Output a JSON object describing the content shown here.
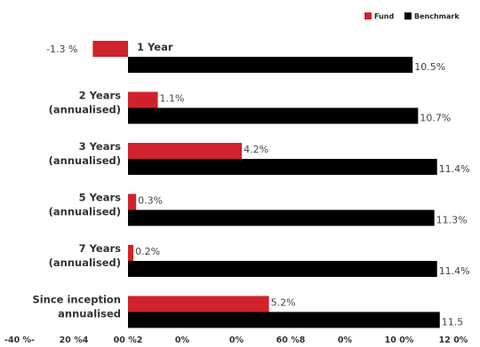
{
  "chart_data": {
    "type": "bar",
    "orientation": "horizontal",
    "legend": {
      "position": "top-right",
      "entries": [
        {
          "name": "Fund",
          "color": "#d0222c"
        },
        {
          "name": "Benchmark",
          "color": "#000000"
        }
      ]
    },
    "categories": [
      [
        "1 Year"
      ],
      [
        "2 Years",
        "(annualised)"
      ],
      [
        "3 Years",
        "(annualised)"
      ],
      [
        "5 Years",
        "(annualised)"
      ],
      [
        "7 Years",
        "(annualised)"
      ],
      [
        "Since inception",
        "annualised"
      ]
    ],
    "series": [
      {
        "name": "Fund",
        "color": "#d0222c",
        "values": [
          -1.3,
          1.1,
          4.2,
          0.3,
          0.2,
          5.2
        ],
        "labels": [
          "-1.3 %",
          "1.1%",
          "4.2%",
          "0.3%",
          "0.2%",
          "5.2%"
        ]
      },
      {
        "name": "Benchmark",
        "color": "#000000",
        "values": [
          10.5,
          10.7,
          11.4,
          11.3,
          11.4,
          11.5
        ],
        "labels": [
          "10.5%",
          "10.7%",
          "11.4%",
          "11.3%",
          "11.4%",
          "11.5"
        ]
      }
    ],
    "xlim": [
      -4,
      12
    ],
    "xtick_values": [
      -4,
      -2,
      0,
      2,
      4,
      6,
      8,
      10,
      12
    ],
    "xtick_labels": [
      "-40 %-",
      "20 %4",
      "00 %2",
      "0%",
      "0%",
      "60 %8",
      "0%",
      "10 0%",
      "12 0%"
    ],
    "grid": false
  }
}
